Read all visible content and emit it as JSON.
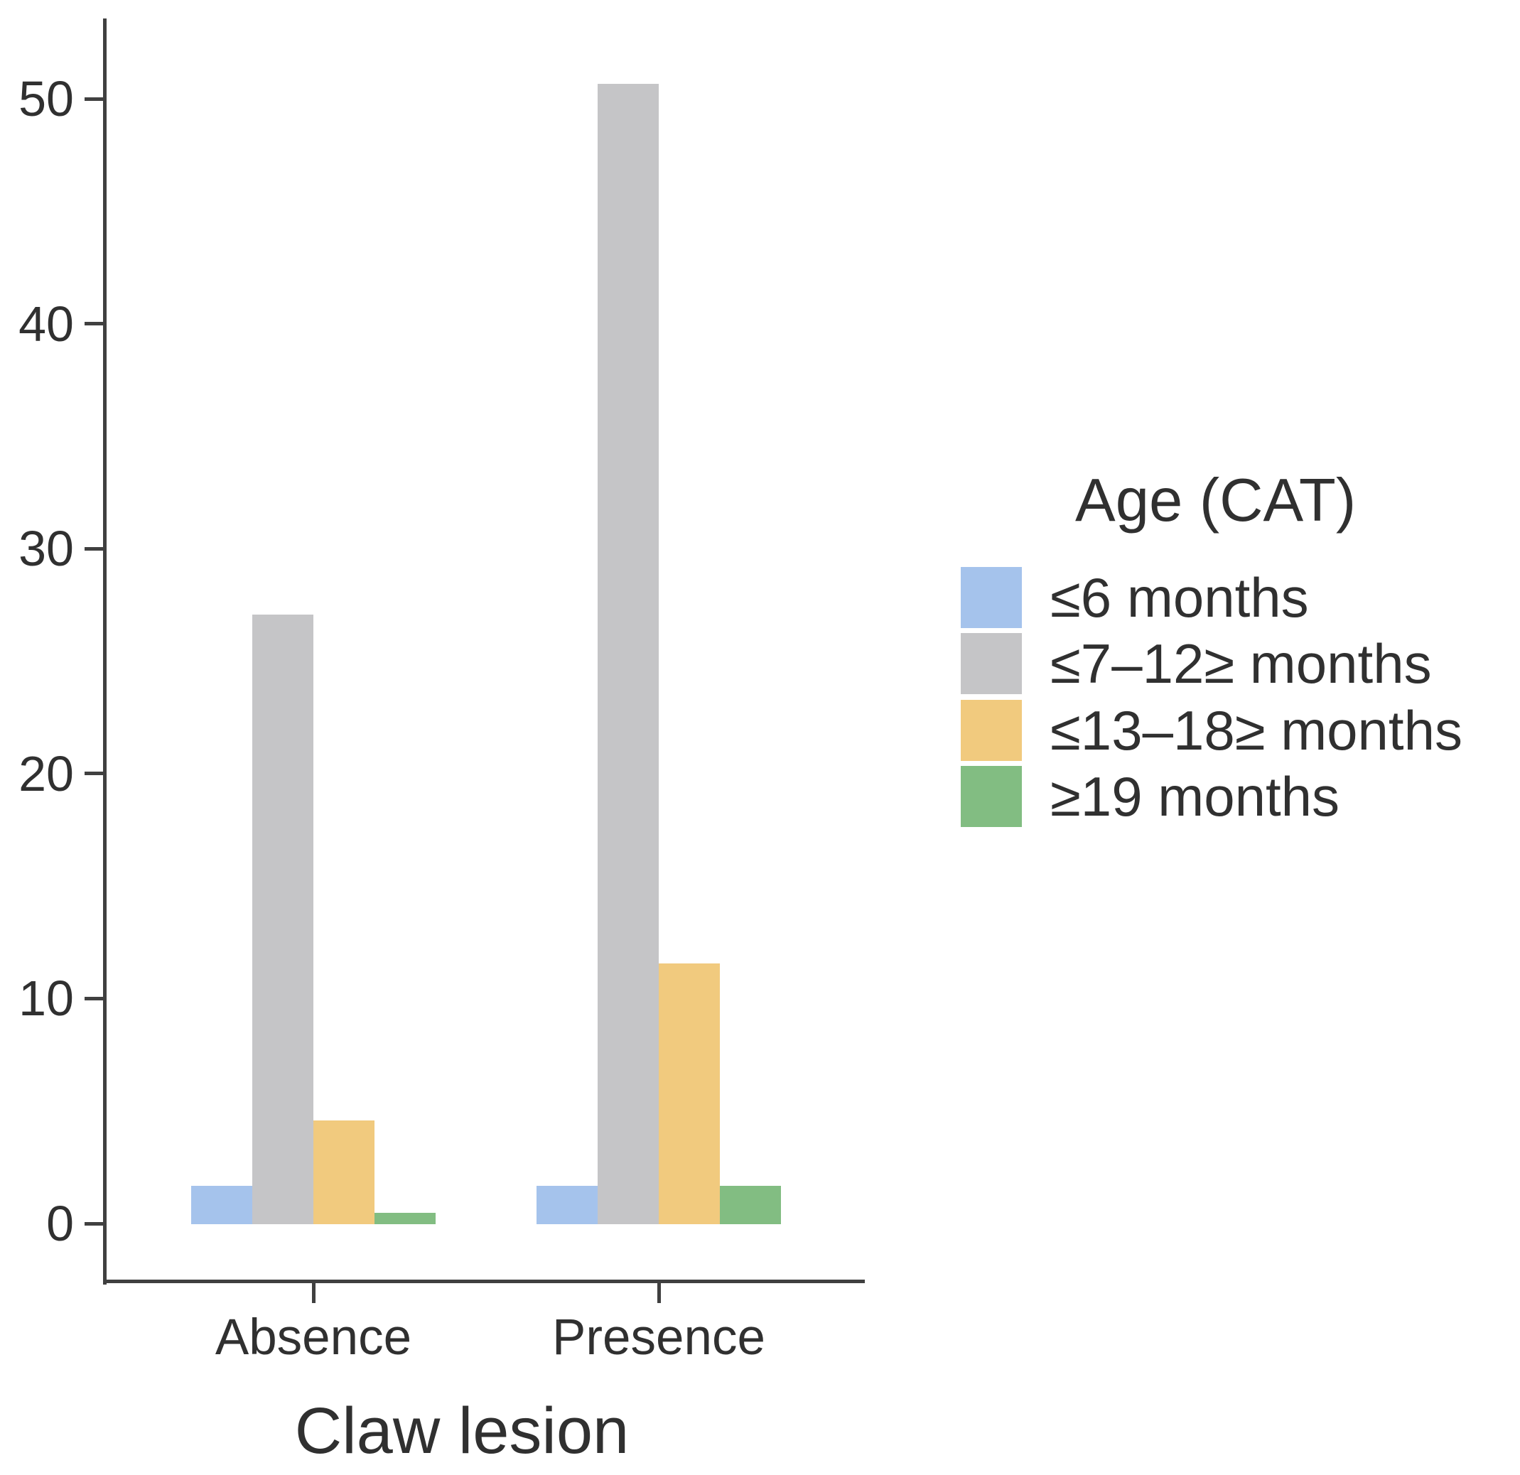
{
  "chart_data": {
    "type": "bar",
    "title": "",
    "xlabel": "Claw lesion",
    "ylabel": "",
    "categories": [
      "Absence",
      "Presence"
    ],
    "y_ticks": [
      0,
      10,
      20,
      30,
      40,
      50
    ],
    "ylim": [
      0,
      52.5
    ],
    "grid": false,
    "legend": {
      "title": "Age (CAT)",
      "position": "right"
    },
    "series": [
      {
        "name": "≤6 months",
        "color": "#a5c3ec",
        "values": [
          1.7,
          1.7
        ]
      },
      {
        "name": "≤7–12≥ months",
        "color": "#c5c5c7",
        "values": [
          27.1,
          50.7
        ]
      },
      {
        "name": "≤13–18≥ months",
        "color": "#f1ca7e",
        "values": [
          4.6,
          11.6
        ]
      },
      {
        "name": "≥19 months",
        "color": "#82bd82",
        "values": [
          0.5,
          1.7
        ]
      }
    ],
    "colors": {
      "axis": "#404040",
      "text": "#303030"
    }
  }
}
